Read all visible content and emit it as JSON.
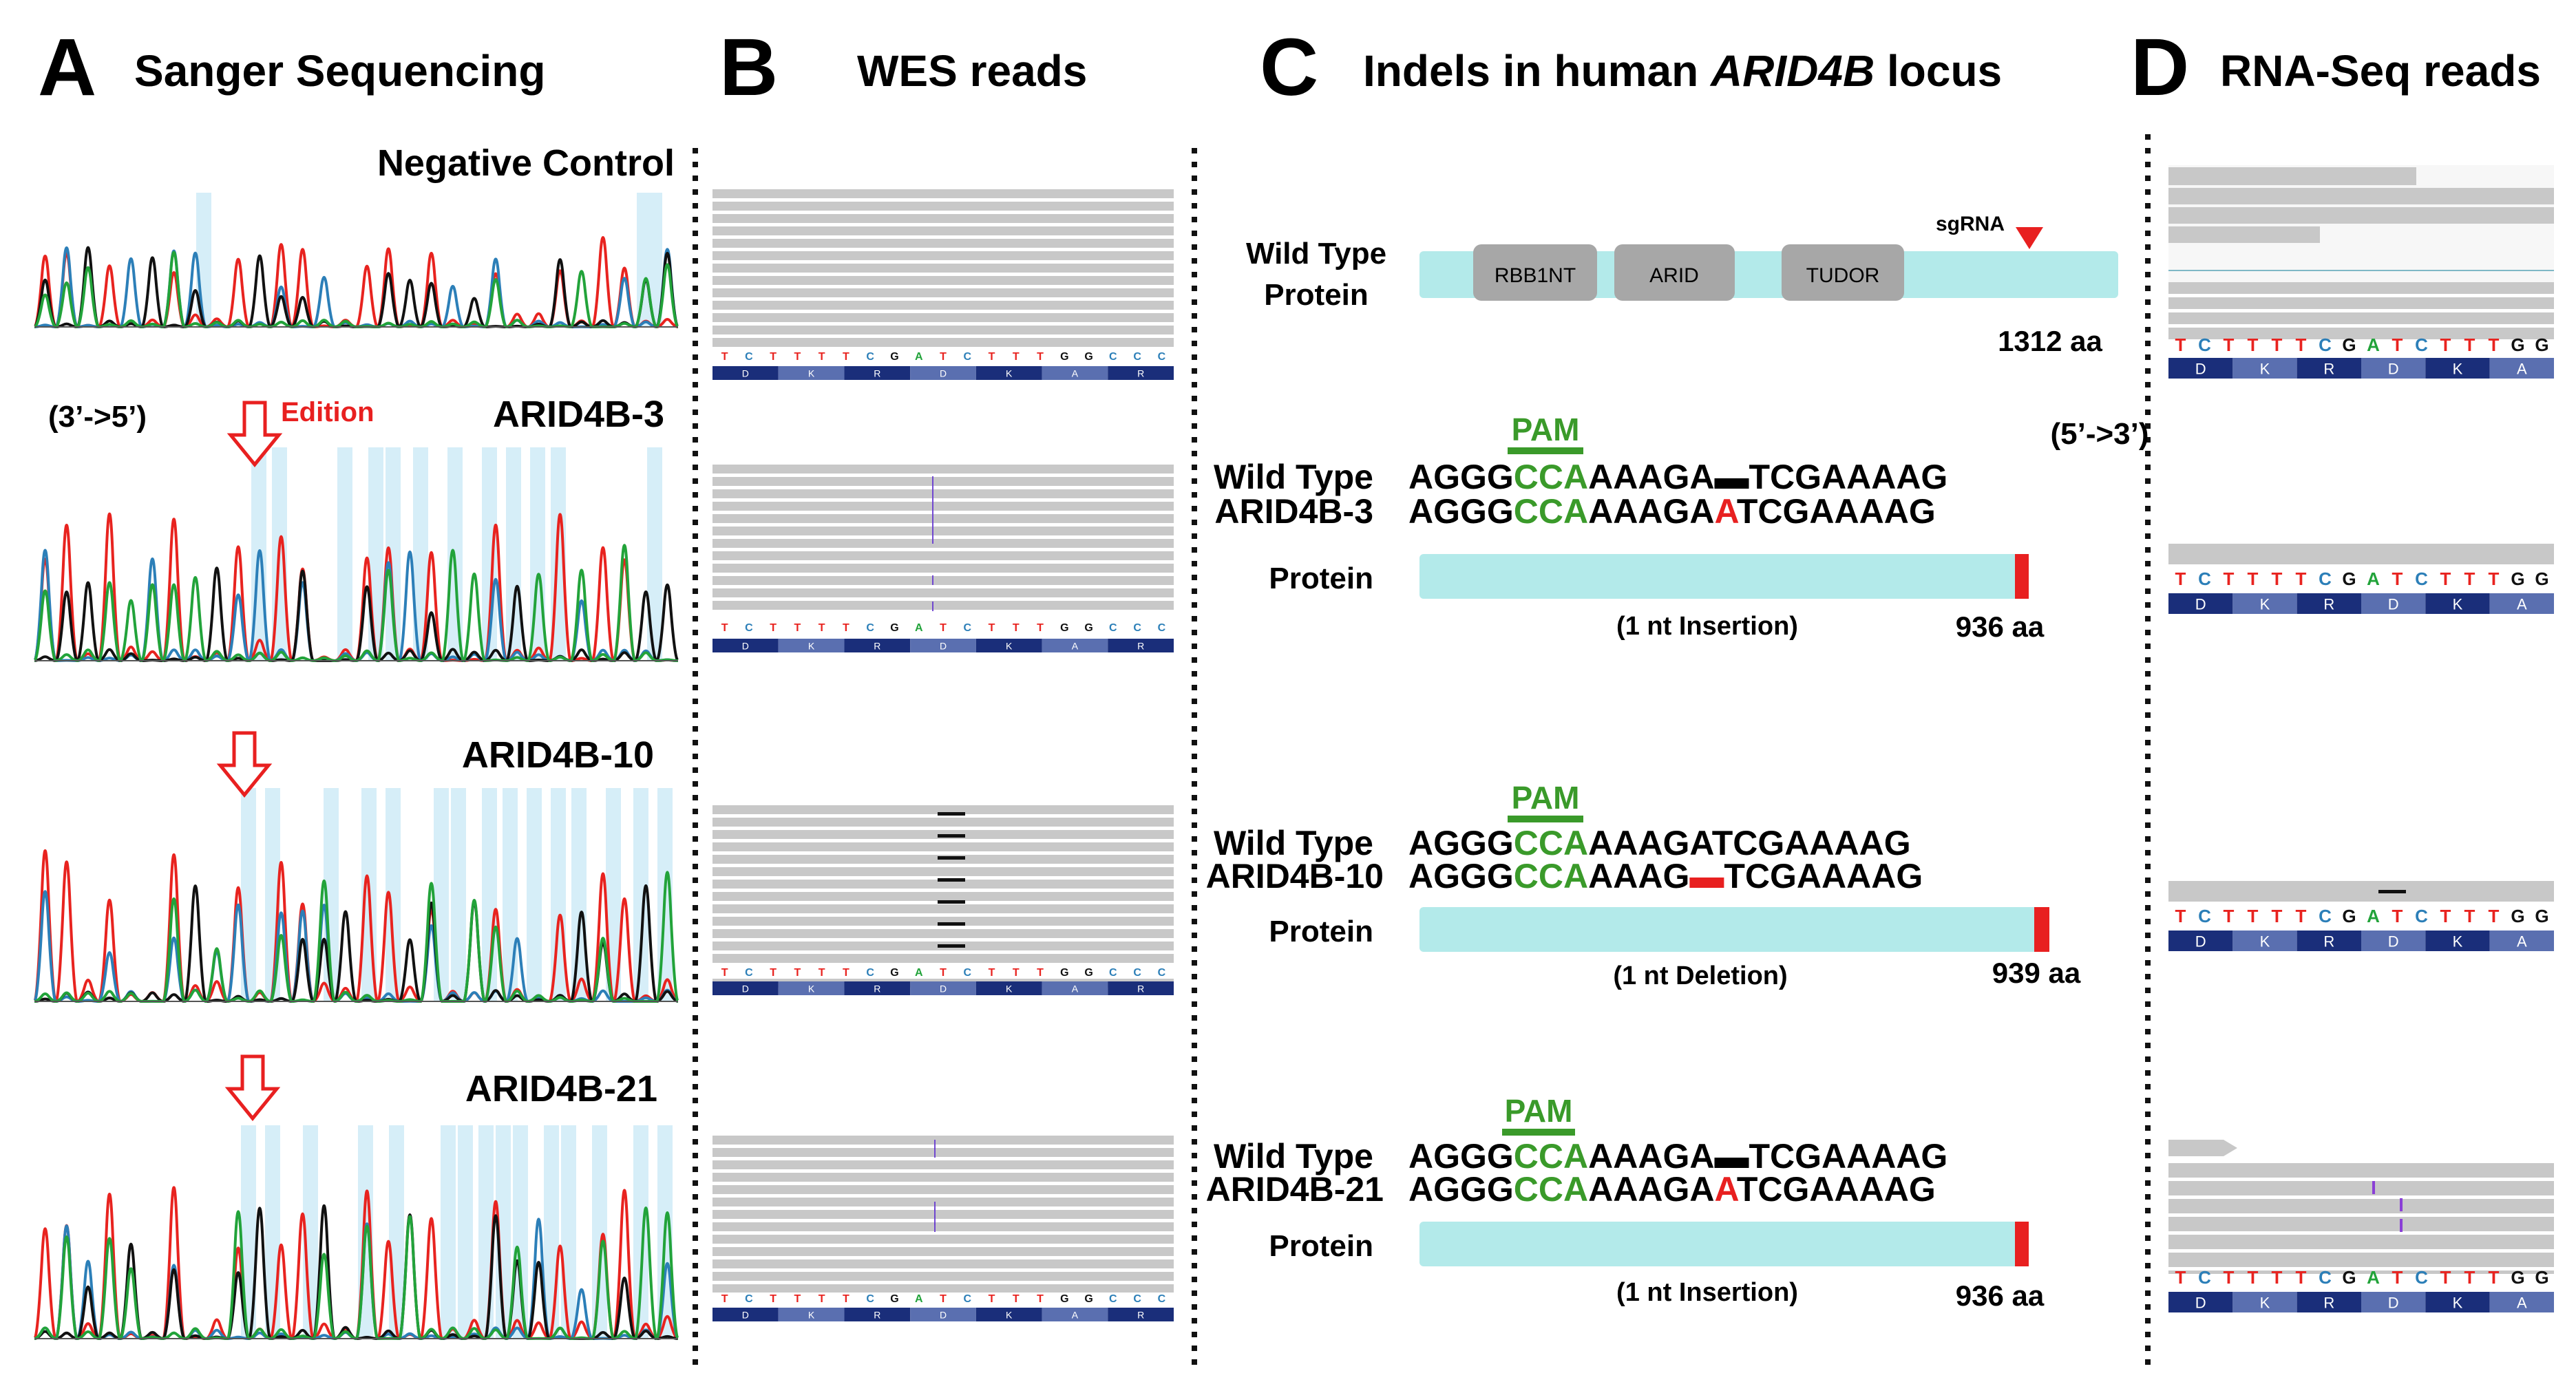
{
  "panels": {
    "A": {
      "letter": "A",
      "title": "Sanger Sequencing"
    },
    "B": {
      "letter": "B",
      "title": "WES reads"
    },
    "C": {
      "letter": "C",
      "title_pre": "Indels in human ",
      "title_gene": "ARID4B",
      "title_post": " locus"
    },
    "D": {
      "letter": "D",
      "title": "RNA-Seq reads"
    }
  },
  "sanger": {
    "orientation": "(3’->5’)",
    "edition_label": "Edition",
    "samples": [
      "Negative Control",
      "ARID4B-3",
      "ARID4B-10",
      "ARID4B-21"
    ]
  },
  "ref_seq": [
    "T",
    "C",
    "T",
    "T",
    "T",
    "T",
    "C",
    "G",
    "A",
    "T",
    "C",
    "T",
    "T",
    "T",
    "G",
    "G",
    "C",
    "C",
    "C"
  ],
  "ref_aa": [
    "D",
    "K",
    "R",
    "D",
    "K",
    "A",
    "R"
  ],
  "rna_aa": [
    "D",
    "K",
    "R",
    "D",
    "K",
    "A"
  ],
  "indels": {
    "wt_protein_label_1": "Wild Type",
    "wt_protein_label_2": "Protein",
    "domains": [
      "RBB1NT",
      "ARID",
      "TUDOR"
    ],
    "sgrna_label": "sgRNA",
    "wt_length": "1312 aa",
    "orientation": "(5’->3’)",
    "pam_label": "PAM",
    "protein_label": "Protein",
    "wt_label": "Wild Type",
    "seq_prefix": "AGGG",
    "seq_pam": "CCA",
    "clones": [
      {
        "name": "ARID4B-3",
        "wt_rest_a": "AAAGA",
        "wt_rest_b": "TCGAAAAG",
        "mut_rest_a": "AAAGA",
        "mut_base": "A",
        "mut_rest_b": "TCGAAAAG",
        "note": "(1 nt Insertion)",
        "length": "936 aa"
      },
      {
        "name": "ARID4B-10",
        "wt_rest": "AAAGATCGAAAAG",
        "mut_rest_a": "AAAG",
        "mut_rest_b": "TCGAAAAG",
        "note": "(1 nt Deletion)",
        "length": "939 aa"
      },
      {
        "name": "ARID4B-21",
        "wt_rest_a": "AAAGA",
        "wt_rest_b": "TCGAAAAG",
        "mut_rest_a": "AAAGA",
        "mut_base": "A",
        "mut_rest_b": "TCGAAAAG",
        "note": "(1 nt Insertion)",
        "length": "936 aa"
      }
    ]
  },
  "colors": {
    "trace_red": "#e8231f",
    "trace_black": "#111111",
    "trace_blue": "#2c7fb8",
    "trace_green": "#22a33a",
    "highlight": "#d6eef8",
    "read_gray": "#c8c8c8",
    "protein_fill": "#b3eaea",
    "domain_fill": "#a7a7a7",
    "pam_green": "#3a9a2a",
    "mut_red": "#e82020",
    "aa_dark": "#1a2e7a",
    "aa_light": "#5a6fb0"
  }
}
